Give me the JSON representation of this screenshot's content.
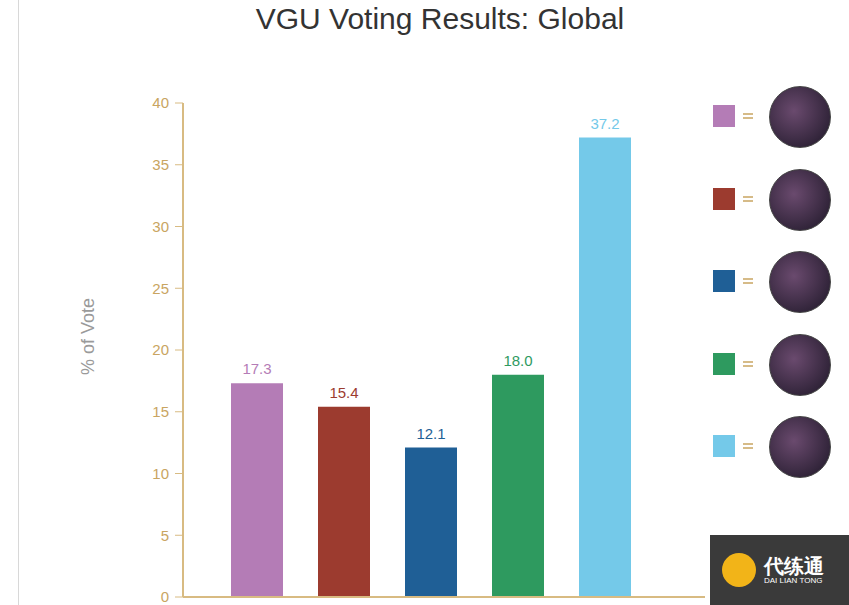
{
  "chart_data": {
    "type": "bar",
    "title": "VGU Voting Results: Global",
    "y_label": "% of Vote",
    "categories": [
      null,
      null,
      null,
      null,
      null
    ],
    "values": [
      17.3,
      15.4,
      12.1,
      18.0,
      37.2
    ],
    "value_labels": [
      "17.3",
      "15.4",
      "12.1",
      "18.0",
      "37.2"
    ],
    "colors": [
      "#b47cb6",
      "#9c3b2f",
      "#1f5f96",
      "#2e9a5f",
      "#74c9e9"
    ],
    "ylim": [
      0,
      40
    ],
    "yticks": [
      0,
      5,
      10,
      15,
      20,
      25,
      30,
      35,
      40
    ],
    "grid": false,
    "data_labels": true,
    "legend": "right",
    "annotations": [
      "代练通",
      "DAI LIAN TONG"
    ]
  }
}
